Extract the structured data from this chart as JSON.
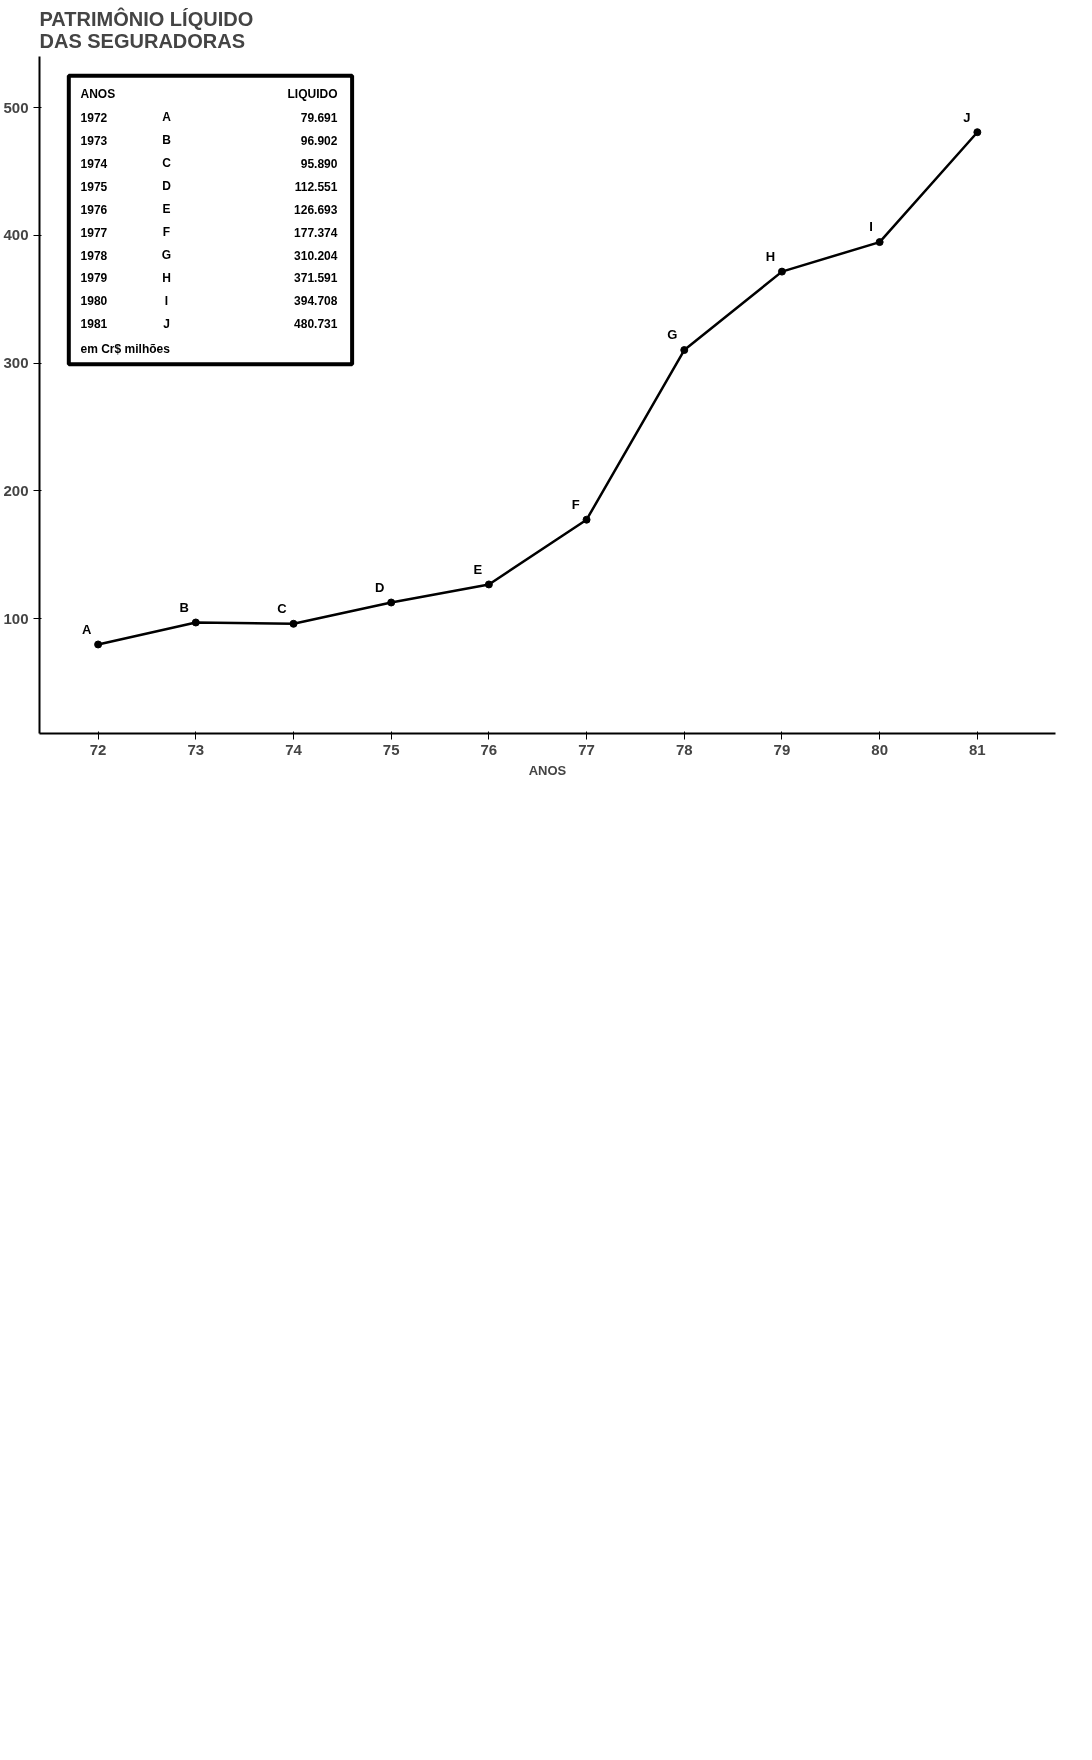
{
  "chart_data": {
    "type": "line",
    "title": "PATRIMÔNIO LÍQUIDO\nDAS SEGURADORAS",
    "xlabel": "ANOS",
    "categories": [
      "72",
      "73",
      "74",
      "75",
      "76",
      "77",
      "78",
      "79",
      "80",
      "81"
    ],
    "values": [
      79.691,
      96.902,
      95.89,
      112.551,
      126.693,
      177.374,
      310.204,
      371.591,
      394.708,
      480.731
    ],
    "color": "#000000",
    "marker": "circle",
    "line_style": "solid",
    "grid": false,
    "ylim": [
      10,
      540
    ],
    "yticks": [
      100,
      200,
      300,
      400,
      500
    ],
    "annotations": [
      {
        "text": "A",
        "x": "72",
        "y": 79.691
      },
      {
        "text": "B",
        "x": "73",
        "y": 96.902
      },
      {
        "text": "C",
        "x": "74",
        "y": 95.89
      },
      {
        "text": "D",
        "x": "75",
        "y": 112.551
      },
      {
        "text": "E",
        "x": "76",
        "y": 126.693
      },
      {
        "text": "F",
        "x": "77",
        "y": 177.374
      },
      {
        "text": "G",
        "x": "78",
        "y": 310.204
      },
      {
        "text": "H",
        "x": "79",
        "y": 371.591
      },
      {
        "text": "I",
        "x": "80",
        "y": 394.708
      },
      {
        "text": "J",
        "x": "81",
        "y": 480.731
      },
      "ANOS",
      "LIQUIDO",
      "1972",
      "1973",
      "1974",
      "1975",
      "1976",
      "1977",
      "1978",
      "1979",
      "1980",
      "1981",
      "79.691",
      "96.902",
      "95.890",
      "112.551",
      "126.693",
      "177.374",
      "310.204",
      "371.591",
      "394.708",
      "480.731",
      "em Cr$ milhões"
    ]
  }
}
